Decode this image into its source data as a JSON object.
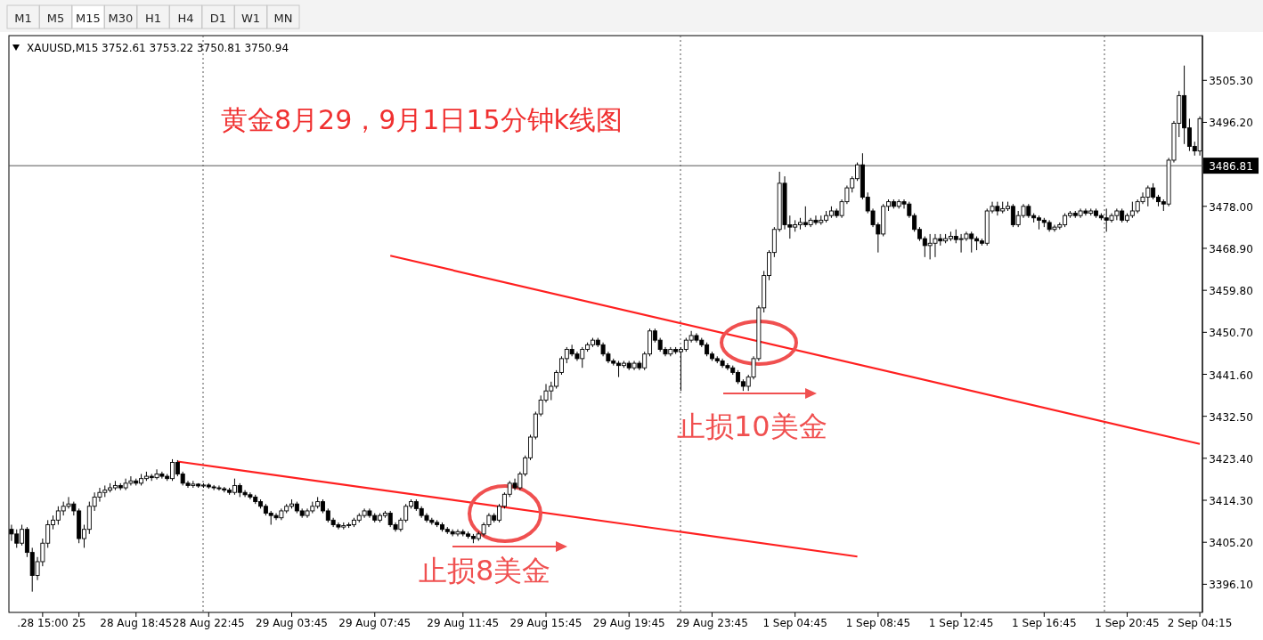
{
  "chart_data": {
    "type": "candlestick",
    "title": "黄金8月29，9月1日15分钟k线图",
    "annotations": [
      "M1",
      "M5",
      "M15",
      "M30",
      "H1",
      "H4",
      "D1",
      "W1",
      "MN",
      "XAUUSD,M15  3752.61 3753.22 3750.81 3750.94",
      "止损8美金",
      "止损10美金"
    ],
    "categories": [
      null,
      null,
      null,
      null,
      null,
      null,
      ".28 15:00",
      null,
      null,
      null,
      null,
      null,
      null,
      "25",
      null,
      null,
      null,
      null,
      null,
      null,
      null,
      null,
      null,
      null,
      "28 Aug 18:45",
      null,
      null,
      null,
      null,
      null,
      null,
      null,
      null,
      null,
      null,
      null,
      null,
      null,
      "28 Aug 22:45",
      null,
      null,
      null,
      null,
      null,
      null,
      null,
      null,
      null,
      null,
      null,
      null,
      null,
      null,
      null,
      "29 Aug 03:45",
      null,
      null,
      null,
      null,
      null,
      null,
      null,
      null,
      null,
      null,
      null,
      null,
      null,
      null,
      null,
      "29 Aug 07:45",
      null,
      null,
      null,
      null,
      null,
      null,
      null,
      null,
      null,
      null,
      null,
      null,
      null,
      null,
      null,
      null,
      "29 Aug 11:45",
      null,
      null,
      null,
      null,
      null,
      null,
      null,
      null,
      null,
      null,
      null,
      null,
      null,
      null,
      null,
      "29 Aug 15:45",
      null,
      null,
      null,
      null,
      null,
      null,
      null,
      null,
      null,
      null,
      null,
      null,
      null,
      null,
      null,
      "29 Aug 19:45",
      null,
      null,
      null,
      null,
      null,
      null,
      null,
      null,
      null,
      null,
      null,
      null,
      null,
      null,
      null,
      "29 Aug 23:45",
      null,
      null,
      null,
      null,
      null,
      null,
      null,
      null,
      null,
      null,
      null,
      null,
      null,
      null,
      null,
      "1 Sep 04:45",
      null,
      null,
      null,
      null,
      null,
      null,
      null,
      null,
      null,
      null,
      null,
      null,
      null,
      null,
      null,
      "1 Sep 08:45",
      null,
      null,
      null,
      null,
      null,
      null,
      null,
      null,
      null,
      null,
      null,
      null,
      null,
      null,
      null,
      "1 Sep 12:45",
      null,
      null,
      null,
      null,
      null,
      null,
      null,
      null,
      null,
      null,
      null,
      null,
      null,
      null,
      null,
      "1 Sep 16:45",
      null,
      null,
      null,
      null,
      null,
      null,
      null,
      null,
      null,
      null,
      null,
      null,
      null,
      null,
      null,
      "1 Sep 20:45",
      null,
      null,
      null,
      null,
      null,
      null,
      null,
      null,
      null,
      null,
      null,
      null,
      null,
      "2 Sep 04:15"
    ],
    "ohlc": [
      [
        3408,
        3409,
        3405.5,
        3407
      ],
      [
        3407,
        3408,
        3404,
        3405
      ],
      [
        3405,
        3409,
        3404.5,
        3408
      ],
      [
        3408,
        3408.5,
        3402,
        3403
      ],
      [
        3403,
        3404,
        3394.5,
        3398
      ],
      [
        3398,
        3402,
        3397,
        3401
      ],
      [
        3401,
        3406,
        3400,
        3405
      ],
      [
        3405,
        3410,
        3404,
        3409
      ],
      [
        3409,
        3411,
        3408,
        3410
      ],
      [
        3410,
        3413,
        3409,
        3412
      ],
      [
        3412,
        3414,
        3411,
        3413
      ],
      [
        3413,
        3415,
        3412.5,
        3413.5
      ],
      [
        3413.5,
        3414,
        3411,
        3412
      ],
      [
        3412,
        3412.5,
        3405,
        3406
      ],
      [
        3406,
        3409,
        3404,
        3408
      ],
      [
        3408,
        3414,
        3407,
        3413
      ],
      [
        3413,
        3416,
        3412,
        3415
      ],
      [
        3415,
        3417,
        3414,
        3416
      ],
      [
        3416,
        3417.5,
        3415,
        3416.5
      ],
      [
        3416.5,
        3418,
        3416,
        3417
      ],
      [
        3417,
        3418.5,
        3416.5,
        3417.5
      ],
      [
        3417.5,
        3418,
        3416.5,
        3417
      ],
      [
        3417,
        3419,
        3416.5,
        3418
      ],
      [
        3418,
        3419.5,
        3417.5,
        3418.5
      ],
      [
        3418.5,
        3419,
        3417.5,
        3418
      ],
      [
        3418,
        3420,
        3417.5,
        3419
      ],
      [
        3419,
        3420.5,
        3418.5,
        3419.5
      ],
      [
        3419.5,
        3420,
        3418.5,
        3419.2
      ],
      [
        3419.2,
        3421,
        3418.8,
        3420
      ],
      [
        3420,
        3420.5,
        3419,
        3419.5
      ],
      [
        3419.5,
        3420,
        3418.5,
        3419
      ],
      [
        3419,
        3423.2,
        3418.5,
        3422.5
      ],
      [
        3422.5,
        3423,
        3419.5,
        3420
      ],
      [
        3420,
        3420.5,
        3417.5,
        3418
      ],
      [
        3418,
        3418.5,
        3417,
        3417.5
      ],
      [
        3417.5,
        3418.5,
        3417,
        3417.8
      ],
      [
        3417.8,
        3418,
        3417,
        3417.4
      ],
      [
        3417.4,
        3418,
        3417,
        3417.6
      ],
      [
        3417.6,
        3418,
        3416.8,
        3417.2
      ],
      [
        3417.2,
        3417.6,
        3416.5,
        3417
      ],
      [
        3417,
        3417.5,
        3416.4,
        3416.8
      ],
      [
        3416.8,
        3417.2,
        3416,
        3416.5
      ],
      [
        3416.5,
        3417,
        3415.5,
        3416
      ],
      [
        3416,
        3419,
        3415.5,
        3417.5
      ],
      [
        3417.5,
        3418,
        3415,
        3416
      ],
      [
        3416,
        3416.5,
        3415,
        3415.5
      ],
      [
        3415.5,
        3416,
        3414.5,
        3415
      ],
      [
        3415,
        3415.5,
        3413.5,
        3414
      ],
      [
        3414,
        3414.5,
        3412.5,
        3413
      ],
      [
        3413,
        3413.5,
        3411,
        3411.5
      ],
      [
        3411.5,
        3412,
        3409,
        3411
      ],
      [
        3411,
        3411.5,
        3410,
        3410.5
      ],
      [
        3410.5,
        3412.5,
        3410,
        3412
      ],
      [
        3412,
        3413.5,
        3411.5,
        3413
      ],
      [
        3413,
        3414.5,
        3412.5,
        3413.5
      ],
      [
        3413.5,
        3414,
        3411.5,
        3412
      ],
      [
        3412,
        3412.5,
        3410.5,
        3411
      ],
      [
        3411,
        3412.5,
        3410.5,
        3412
      ],
      [
        3412,
        3414,
        3411.5,
        3413
      ],
      [
        3413,
        3415,
        3412.5,
        3414
      ],
      [
        3414,
        3414.5,
        3411.5,
        3412
      ],
      [
        3412,
        3412.5,
        3409.5,
        3410
      ],
      [
        3410,
        3410.5,
        3408.5,
        3409
      ],
      [
        3409,
        3409.5,
        3408,
        3408.5
      ],
      [
        3408.5,
        3409.5,
        3408,
        3408.8
      ],
      [
        3408.8,
        3409.5,
        3408.3,
        3409
      ],
      [
        3409,
        3410.5,
        3408.5,
        3410
      ],
      [
        3410,
        3411.5,
        3409.5,
        3411
      ],
      [
        3411,
        3412.5,
        3410.5,
        3412
      ],
      [
        3412,
        3412.5,
        3410.5,
        3411
      ],
      [
        3411,
        3411.5,
        3409.5,
        3410
      ],
      [
        3410,
        3411.5,
        3409.5,
        3411
      ],
      [
        3411,
        3412,
        3410.5,
        3411.5
      ],
      [
        3411.5,
        3412,
        3408.5,
        3409
      ],
      [
        3409,
        3409.5,
        3407.5,
        3408
      ],
      [
        3408,
        3410.5,
        3407.5,
        3410
      ],
      [
        3410,
        3413.5,
        3409.5,
        3413
      ],
      [
        3413,
        3414.5,
        3412.5,
        3414
      ],
      [
        3414,
        3414.5,
        3412,
        3412.5
      ],
      [
        3412.5,
        3413,
        3410.5,
        3411
      ],
      [
        3411,
        3411.5,
        3409.5,
        3410
      ],
      [
        3410,
        3410.5,
        3409,
        3409.5
      ],
      [
        3409.5,
        3410,
        3408.5,
        3409
      ],
      [
        3409,
        3409.5,
        3407.5,
        3408
      ],
      [
        3408,
        3408.5,
        3407,
        3407.5
      ],
      [
        3407.5,
        3408,
        3406.5,
        3407
      ],
      [
        3407,
        3408,
        3406.5,
        3407.5
      ],
      [
        3407.5,
        3408,
        3406.5,
        3407
      ],
      [
        3407,
        3407.5,
        3406,
        3406.5
      ],
      [
        3406.5,
        3407,
        3405,
        3406
      ],
      [
        3406,
        3407.5,
        3405.5,
        3407
      ],
      [
        3407,
        3409.5,
        3406.5,
        3409
      ],
      [
        3409,
        3411.5,
        3408.5,
        3411
      ],
      [
        3411,
        3411.5,
        3409.5,
        3410
      ],
      [
        3410,
        3413.5,
        3409.5,
        3413
      ],
      [
        3413,
        3416,
        3412.5,
        3415.6
      ],
      [
        3415.6,
        3418.5,
        3415,
        3418
      ],
      [
        3418,
        3419,
        3416.5,
        3417
      ],
      [
        3417,
        3420.5,
        3416.5,
        3420
      ],
      [
        3420,
        3424,
        3419.5,
        3423.5
      ],
      [
        3423.5,
        3428.5,
        3423,
        3428
      ],
      [
        3428,
        3433.5,
        3427.5,
        3433
      ],
      [
        3433,
        3437,
        3432.5,
        3436
      ],
      [
        3436,
        3439.5,
        3435.5,
        3438
      ],
      [
        3438,
        3440,
        3436,
        3439
      ],
      [
        3439,
        3442.5,
        3438.5,
        3442
      ],
      [
        3442,
        3445.5,
        3441.5,
        3445
      ],
      [
        3445,
        3447.5,
        3444,
        3447
      ],
      [
        3447,
        3448,
        3445.5,
        3446
      ],
      [
        3446,
        3446.5,
        3444.5,
        3445
      ],
      [
        3445,
        3447.5,
        3443,
        3447
      ],
      [
        3447,
        3448.5,
        3446.5,
        3448
      ],
      [
        3448,
        3449.5,
        3447.5,
        3449
      ],
      [
        3449,
        3449.5,
        3447.5,
        3448
      ],
      [
        3448,
        3448.5,
        3445.5,
        3446
      ],
      [
        3446,
        3446.5,
        3444,
        3444.5
      ],
      [
        3444.5,
        3445,
        3443.5,
        3444
      ],
      [
        3444,
        3444.5,
        3441,
        3443.5
      ],
      [
        3443.5,
        3444.5,
        3443,
        3444
      ],
      [
        3444,
        3444.5,
        3442.5,
        3443
      ],
      [
        3443,
        3444.5,
        3442.5,
        3444
      ],
      [
        3444,
        3444.5,
        3442.5,
        3443
      ],
      [
        3443,
        3446.5,
        3442.5,
        3446
      ],
      [
        3446,
        3451.5,
        3445.5,
        3451
      ],
      [
        3451,
        3451.5,
        3448.5,
        3449
      ],
      [
        3449,
        3449.5,
        3446.5,
        3447
      ],
      [
        3447,
        3447.5,
        3445.5,
        3446
      ],
      [
        3446,
        3447.5,
        3445.5,
        3447
      ],
      [
        3447,
        3447.5,
        3446,
        3446.5
      ],
      [
        3446.5,
        3447.5,
        3438,
        3447
      ],
      [
        3447,
        3449.5,
        3446.5,
        3449
      ],
      [
        3449,
        3451,
        3448.5,
        3450
      ],
      [
        3450,
        3450.5,
        3448.5,
        3449
      ],
      [
        3449,
        3449.5,
        3447.5,
        3448
      ],
      [
        3448,
        3448.5,
        3445.5,
        3446
      ],
      [
        3446,
        3446.5,
        3444.5,
        3445
      ],
      [
        3445,
        3445.5,
        3444,
        3444.5
      ],
      [
        3444.5,
        3445,
        3443,
        3443.5
      ],
      [
        3443.5,
        3444,
        3442.5,
        3443
      ],
      [
        3443,
        3443.5,
        3441.5,
        3442
      ],
      [
        3442,
        3442.5,
        3439.5,
        3440
      ],
      [
        3440,
        3440.5,
        3438,
        3439
      ],
      [
        3439,
        3441.5,
        3438,
        3441
      ],
      [
        3441,
        3445.5,
        3440.5,
        3445
      ],
      [
        3445,
        3456.5,
        3444.5,
        3456
      ],
      [
        3456,
        3464,
        3455,
        3463
      ],
      [
        3463,
        3468.5,
        3462,
        3468
      ],
      [
        3468,
        3473.5,
        3467,
        3473
      ],
      [
        3473,
        3485.5,
        3472.5,
        3483
      ],
      [
        3483,
        3484.5,
        3473,
        3474
      ],
      [
        3474,
        3476,
        3471,
        3473.5
      ],
      [
        3473.5,
        3475,
        3472.5,
        3474
      ],
      [
        3474,
        3475.5,
        3473,
        3474.5
      ],
      [
        3474.5,
        3478,
        3473.5,
        3474
      ],
      [
        3474,
        3475.5,
        3473.5,
        3475
      ],
      [
        3475,
        3476,
        3474,
        3474.5
      ],
      [
        3474.5,
        3476,
        3474,
        3475
      ],
      [
        3475,
        3477,
        3474.5,
        3476
      ],
      [
        3476,
        3478,
        3475.5,
        3477
      ],
      [
        3477,
        3477.5,
        3475.5,
        3476
      ],
      [
        3476,
        3479.5,
        3475.5,
        3479
      ],
      [
        3479,
        3482.5,
        3478.5,
        3482
      ],
      [
        3482,
        3484.5,
        3481,
        3484
      ],
      [
        3484,
        3487.5,
        3483.5,
        3487
      ],
      [
        3487,
        3489.5,
        3479.5,
        3480
      ],
      [
        3480,
        3481,
        3476.5,
        3477
      ],
      [
        3477,
        3477.5,
        3473.5,
        3474
      ],
      [
        3474,
        3474.5,
        3468,
        3472
      ],
      [
        3472,
        3478.5,
        3471.5,
        3478
      ],
      [
        3478,
        3479.5,
        3477,
        3479
      ],
      [
        3479,
        3479.5,
        3477.5,
        3478
      ],
      [
        3478,
        3479.5,
        3477.5,
        3479
      ],
      [
        3479,
        3479.5,
        3477.5,
        3478.5
      ],
      [
        3478.5,
        3479,
        3475.5,
        3476
      ],
      [
        3476,
        3476.5,
        3472.5,
        3473
      ],
      [
        3473,
        3473.5,
        3470.5,
        3471
      ],
      [
        3471,
        3471.5,
        3467,
        3469.5
      ],
      [
        3469.5,
        3472,
        3466.5,
        3470
      ],
      [
        3470,
        3472,
        3467,
        3471
      ],
      [
        3471,
        3472,
        3469.5,
        3470.5
      ],
      [
        3470.5,
        3472,
        3470,
        3471
      ],
      [
        3471,
        3472.5,
        3470.5,
        3471.5
      ],
      [
        3471.5,
        3473,
        3470,
        3470.8
      ],
      [
        3470.8,
        3472,
        3468,
        3471
      ],
      [
        3471,
        3472.5,
        3470.5,
        3472
      ],
      [
        3472,
        3472.5,
        3468,
        3471
      ],
      [
        3471,
        3471.5,
        3468.5,
        3470.5
      ],
      [
        3470.5,
        3471,
        3469.5,
        3470
      ],
      [
        3470,
        3477.5,
        3469.5,
        3477
      ],
      [
        3477,
        3479,
        3476.5,
        3478
      ],
      [
        3478,
        3479,
        3476,
        3477
      ],
      [
        3477,
        3479,
        3476.5,
        3477.5
      ],
      [
        3477.5,
        3479,
        3477,
        3478
      ],
      [
        3478,
        3478.5,
        3473.5,
        3474
      ],
      [
        3474,
        3477,
        3473.5,
        3476
      ],
      [
        3476,
        3478.5,
        3475.5,
        3478
      ],
      [
        3478,
        3478.5,
        3475.5,
        3476
      ],
      [
        3476,
        3476.5,
        3474.5,
        3475.5
      ],
      [
        3475.5,
        3476,
        3473,
        3475
      ],
      [
        3475,
        3475.5,
        3473.5,
        3474.5
      ],
      [
        3474.5,
        3475,
        3472.5,
        3473
      ],
      [
        3473,
        3474,
        3472.5,
        3473.5
      ],
      [
        3473.5,
        3474.5,
        3473,
        3474
      ],
      [
        3474,
        3476.5,
        3473.5,
        3476
      ],
      [
        3476,
        3477,
        3475.5,
        3476.5
      ],
      [
        3476.5,
        3477,
        3475.5,
        3476
      ],
      [
        3476,
        3477.5,
        3475.5,
        3477
      ],
      [
        3477,
        3477.5,
        3476,
        3476.5
      ],
      [
        3476.5,
        3477.5,
        3476,
        3477
      ],
      [
        3477,
        3477.5,
        3475.5,
        3476
      ],
      [
        3476,
        3476.5,
        3475,
        3475.5
      ],
      [
        3475.5,
        3477.5,
        3472.5,
        3475
      ],
      [
        3475,
        3476.5,
        3474.5,
        3476
      ],
      [
        3476,
        3477.5,
        3475,
        3477
      ],
      [
        3477,
        3477.5,
        3474.5,
        3475
      ],
      [
        3475,
        3476.5,
        3474.5,
        3476
      ],
      [
        3476,
        3479,
        3475.5,
        3477
      ],
      [
        3477,
        3479.5,
        3476.5,
        3479
      ],
      [
        3479,
        3481,
        3478.5,
        3480
      ],
      [
        3480,
        3482.5,
        3478,
        3482
      ],
      [
        3482,
        3483,
        3479.5,
        3480
      ],
      [
        3480,
        3480.5,
        3478,
        3479
      ],
      [
        3479,
        3479.5,
        3477,
        3478.5
      ],
      [
        3478.5,
        3488.5,
        3478,
        3488
      ],
      [
        3488,
        3496.5,
        3487.5,
        3496
      ],
      [
        3496,
        3503,
        3493,
        3502
      ],
      [
        3502,
        3508.5,
        3491.5,
        3495
      ],
      [
        3495,
        3497,
        3490,
        3491
      ],
      [
        3491,
        3492,
        3489,
        3490
      ],
      [
        3490,
        3497.5,
        3489,
        3497
      ]
    ],
    "series": [
      {
        "type": "line",
        "color": "#ff2020",
        "values": [
          null,
          null,
          null,
          null,
          null,
          null,
          null,
          null,
          null,
          null,
          null,
          null,
          null,
          null,
          null,
          null,
          null,
          null,
          null,
          null,
          null,
          null,
          null,
          null,
          null,
          null,
          null,
          null,
          null,
          null,
          null,
          null,
          3422.7,
          null,
          null,
          null,
          null,
          null,
          null,
          null,
          null,
          null,
          null,
          null,
          null,
          null,
          null,
          null,
          null,
          null,
          null,
          null,
          null,
          null,
          null,
          null,
          null,
          null,
          null,
          null,
          null,
          null,
          null,
          null,
          null,
          null,
          null,
          null,
          null,
          null,
          null,
          null,
          null,
          null,
          null,
          null,
          null,
          null,
          null,
          null,
          null,
          null,
          null,
          null,
          null,
          null,
          null,
          null,
          null,
          null,
          null,
          null,
          null,
          null,
          null,
          null,
          null,
          null,
          null,
          null,
          null,
          null,
          null,
          null,
          null,
          null,
          null,
          null,
          null,
          null,
          null,
          null,
          null,
          null,
          null,
          null,
          null,
          null,
          null,
          null,
          null,
          null,
          null,
          null,
          null,
          null,
          null,
          null,
          null,
          null,
          null,
          null,
          null,
          null,
          null,
          null,
          null,
          null,
          null,
          null,
          null,
          null,
          null,
          null,
          null,
          null,
          null,
          null,
          null,
          null,
          null,
          null,
          null,
          null,
          null,
          null,
          null,
          null,
          null,
          null,
          null,
          null,
          null,
          3402.1,
          null,
          null,
          null,
          null,
          null,
          null,
          null,
          null,
          null,
          null,
          null,
          null,
          null,
          null,
          null,
          null,
          null,
          null,
          null,
          null,
          null,
          null,
          null,
          null,
          null,
          null,
          null,
          null,
          null,
          null,
          null,
          null,
          null,
          null,
          null,
          null,
          null,
          null,
          null,
          null,
          null,
          null,
          null,
          null,
          null,
          null,
          null,
          null,
          null,
          null,
          null,
          null,
          null,
          null,
          null,
          null,
          null,
          null,
          null,
          null,
          null,
          null,
          null,
          null,
          null,
          null
        ]
      },
      {
        "type": "line",
        "color": "#ff2020",
        "values": [
          null,
          null,
          null,
          null,
          null,
          null,
          null,
          null,
          null,
          null,
          null,
          null,
          null,
          null,
          null,
          null,
          null,
          null,
          null,
          null,
          null,
          null,
          null,
          null,
          null,
          null,
          null,
          null,
          null,
          null,
          null,
          null,
          null,
          null,
          null,
          null,
          null,
          null,
          null,
          null,
          null,
          null,
          null,
          null,
          null,
          null,
          null,
          null,
          null,
          null,
          null,
          null,
          null,
          null,
          null,
          null,
          null,
          null,
          null,
          null,
          null,
          null,
          null,
          null,
          null,
          null,
          null,
          null,
          null,
          null,
          null,
          null,
          null,
          3467.3,
          null,
          null,
          null,
          null,
          null,
          null,
          null,
          null,
          null,
          null,
          null,
          null,
          null,
          null,
          null,
          null,
          null,
          null,
          null,
          null,
          null,
          null,
          null,
          null,
          null,
          null,
          null,
          null,
          null,
          null,
          null,
          null,
          null,
          null,
          null,
          null,
          null,
          null,
          null,
          null,
          null,
          null,
          null,
          null,
          null,
          null,
          null,
          null,
          null,
          null,
          null,
          null,
          null,
          null,
          null,
          null,
          null,
          null,
          null,
          null,
          null,
          null,
          null,
          null,
          null,
          null,
          null,
          null,
          null,
          null,
          null,
          null,
          null,
          null,
          null,
          null,
          null,
          null,
          null,
          null,
          null,
          null,
          null,
          null,
          null,
          null,
          null,
          null,
          null,
          null,
          null,
          null,
          null,
          null,
          null,
          null,
          null,
          null,
          null,
          null,
          null,
          null,
          null,
          null,
          null,
          null,
          null,
          null,
          null,
          null,
          null,
          null,
          null,
          null,
          null,
          null,
          null,
          null,
          null,
          null,
          null,
          null,
          null,
          null,
          null,
          null,
          null,
          null,
          null,
          null,
          null,
          null,
          null,
          null,
          null,
          null,
          null,
          null,
          null,
          null,
          null,
          null,
          null,
          null,
          null,
          null,
          null,
          null,
          null,
          null,
          null,
          null,
          null,
          null,
          null,
          3426.5
        ]
      }
    ],
    "ylim": [
      3390,
      3515
    ],
    "yticks": [
      {
        "value": 3396.1,
        "label": "3396.10"
      },
      {
        "value": 3405.2,
        "label": "3405.20"
      },
      {
        "value": 3414.3,
        "label": "3414.30"
      },
      {
        "value": 3423.4,
        "label": "3423.40"
      },
      {
        "value": 3432.5,
        "label": "3432.50"
      },
      {
        "value": 3441.6,
        "label": "3441.60"
      },
      {
        "value": 3450.7,
        "label": "3450.70"
      },
      {
        "value": 3459.8,
        "label": "3459.80"
      },
      {
        "value": 3468.9,
        "label": "3468.90"
      },
      {
        "value": 3478.0,
        "label": "3478.00"
      },
      {
        "value": 3496.2,
        "label": "3496.20"
      },
      {
        "value": 3505.3,
        "label": "3505.30"
      }
    ],
    "ref_lines": [
      {
        "axis": "y",
        "value": 3486.81,
        "label": "3486.81",
        "color": "#555555",
        "line_style": "solid"
      }
    ],
    "grid": false
  }
}
